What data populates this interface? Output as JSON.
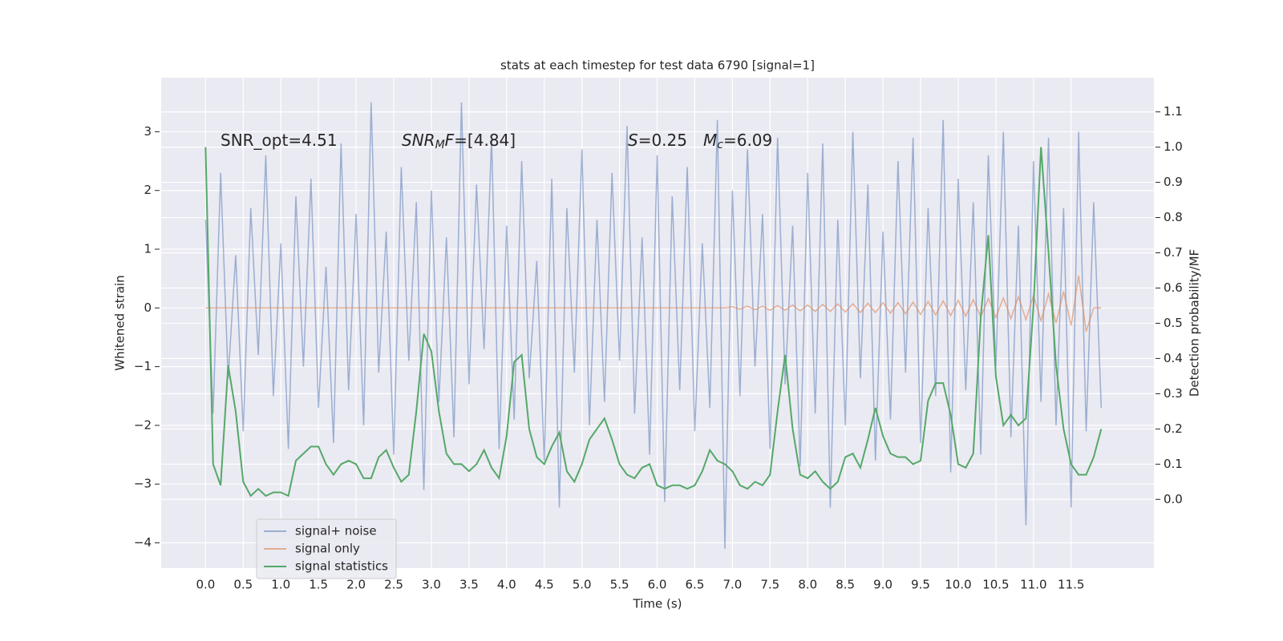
{
  "chart_data": {
    "type": "line",
    "title": "stats at each timestep for test data 6790 [signal=1]",
    "xlabel": "Time (s)",
    "ylabel": "Whitened strain",
    "y2label": "Detection probability/MF",
    "annotations": [
      [
        {
          "text": "SNR_opt=4.51",
          "style": "normal"
        }
      ],
      [
        {
          "text": "SNR",
          "style": "italic"
        },
        {
          "text": "M",
          "style": "italic-sub"
        },
        {
          "text": "F",
          "style": "italic"
        },
        {
          "text": "=[4.84]",
          "style": "normal"
        }
      ],
      [
        {
          "text": "S",
          "style": "italic"
        },
        {
          "text": "=0.25",
          "style": "normal"
        }
      ],
      [
        {
          "text": "M",
          "style": "italic"
        },
        {
          "text": "c",
          "style": "italic-sub"
        },
        {
          "text": "=6.09",
          "style": "normal"
        }
      ]
    ],
    "x": [
      0,
      0.1,
      0.2,
      0.3,
      0.4,
      0.5,
      0.6,
      0.7,
      0.8,
      0.9,
      1,
      1.1,
      1.2,
      1.3,
      1.4,
      1.5,
      1.6,
      1.7,
      1.8,
      1.9,
      2,
      2.1,
      2.2,
      2.3,
      2.4,
      2.5,
      2.6,
      2.7,
      2.8,
      2.9,
      3,
      3.1,
      3.2,
      3.3,
      3.4,
      3.5,
      3.6,
      3.7,
      3.8,
      3.9,
      4,
      4.1,
      4.2,
      4.3,
      4.4,
      4.5,
      4.6,
      4.7,
      4.8,
      4.9,
      5,
      5.1,
      5.2,
      5.3,
      5.4,
      5.5,
      5.6,
      5.7,
      5.8,
      5.9,
      6,
      6.1,
      6.2,
      6.3,
      6.4,
      6.5,
      6.6,
      6.7,
      6.8,
      6.9,
      7,
      7.1,
      7.2,
      7.3,
      7.4,
      7.5,
      7.6,
      7.7,
      7.8,
      7.9,
      8,
      8.1,
      8.2,
      8.3,
      8.4,
      8.5,
      8.6,
      8.7,
      8.8,
      8.9,
      9,
      9.1,
      9.2,
      9.3,
      9.4,
      9.5,
      9.6,
      9.7,
      9.8,
      9.9,
      10,
      10.1,
      10.2,
      10.3,
      10.4,
      10.5,
      10.6,
      10.7,
      10.8,
      10.9,
      11,
      11.1,
      11.2,
      11.3,
      11.4,
      11.5,
      11.6,
      11.7,
      11.8,
      11.9
    ],
    "series": [
      {
        "name": "signal+ noise",
        "color": "#4c72b0",
        "opacity": 0.5,
        "values": [
          1.5,
          -1.8,
          2.3,
          -1.2,
          0.9,
          -2.1,
          1.7,
          -0.8,
          2.6,
          -1.5,
          1.1,
          -2.4,
          1.9,
          -1.0,
          2.2,
          -1.7,
          0.7,
          -2.3,
          2.8,
          -1.4,
          1.6,
          -2.0,
          3.5,
          -1.1,
          1.3,
          -2.5,
          2.4,
          -0.9,
          1.8,
          -3.1,
          2.0,
          -1.6,
          1.2,
          -2.2,
          3.5,
          -1.3,
          2.1,
          -0.7,
          2.9,
          -2.4,
          1.4,
          -1.9,
          2.5,
          -1.2,
          0.8,
          -2.6,
          2.2,
          -3.4,
          1.7,
          -1.1,
          2.7,
          -2.0,
          1.5,
          -1.6,
          2.3,
          -0.9,
          3.1,
          -1.8,
          1.2,
          -2.5,
          2.6,
          -3.3,
          1.9,
          -1.4,
          2.4,
          -2.1,
          1.1,
          -1.7,
          3.2,
          -4.1,
          2.0,
          -1.5,
          2.7,
          -1.0,
          1.6,
          -2.4,
          2.9,
          -1.3,
          1.4,
          -2.7,
          2.3,
          -1.8,
          2.8,
          -3.4,
          1.5,
          -2.0,
          3.0,
          -1.2,
          2.1,
          -2.6,
          1.3,
          -1.9,
          2.5,
          -1.1,
          2.9,
          -2.3,
          1.7,
          -1.5,
          3.2,
          -2.8,
          2.2,
          -1.4,
          1.8,
          -2.5,
          2.6,
          -1.0,
          3.0,
          -2.2,
          1.4,
          -3.7,
          2.5,
          -1.6,
          2.9,
          -2.0,
          1.7,
          -3.4,
          3.0,
          -2.1,
          1.8,
          -1.7
        ]
      },
      {
        "name": "signal only",
        "color": "#dd8452",
        "opacity": 0.6,
        "values": [
          0,
          0,
          0,
          0,
          0,
          0,
          0,
          0,
          0,
          0,
          0,
          0,
          0,
          0,
          0,
          0,
          0,
          0,
          0,
          0,
          0,
          0,
          0,
          0,
          0,
          0,
          0,
          0,
          0,
          0,
          0,
          0,
          0,
          0,
          0,
          0,
          0,
          0,
          0,
          0,
          0,
          0,
          0,
          0,
          0,
          0,
          0,
          0,
          0,
          0,
          0,
          0,
          0,
          0,
          0,
          0,
          0,
          0,
          0,
          0,
          0,
          0,
          0,
          0,
          0,
          0,
          0,
          0,
          0,
          0,
          0.02,
          -0.02,
          0.03,
          -0.03,
          0.03,
          -0.04,
          0.04,
          -0.04,
          0.05,
          -0.05,
          0.05,
          -0.06,
          0.06,
          -0.06,
          0.07,
          -0.07,
          0.07,
          -0.08,
          0.08,
          -0.08,
          0.09,
          -0.09,
          0.09,
          -0.1,
          0.1,
          -0.11,
          0.11,
          -0.12,
          0.12,
          -0.13,
          0.13,
          -0.14,
          0.14,
          -0.15,
          0.16,
          -0.16,
          0.17,
          -0.18,
          0.19,
          -0.2,
          0.21,
          -0.22,
          0.24,
          -0.26,
          0.28,
          -0.3,
          0.55,
          -0.4,
          0,
          0
        ]
      },
      {
        "name": "signal statistics",
        "color": "#55a868",
        "opacity": 1,
        "axis": "y2",
        "values": [
          1.0,
          0.1,
          0.04,
          0.38,
          0.25,
          0.05,
          0.01,
          0.03,
          0.01,
          0.02,
          0.02,
          0.01,
          0.11,
          0.13,
          0.15,
          0.15,
          0.1,
          0.07,
          0.1,
          0.11,
          0.1,
          0.06,
          0.06,
          0.12,
          0.14,
          0.09,
          0.05,
          0.07,
          0.25,
          0.47,
          0.42,
          0.25,
          0.13,
          0.1,
          0.1,
          0.08,
          0.1,
          0.14,
          0.09,
          0.06,
          0.18,
          0.39,
          0.41,
          0.2,
          0.12,
          0.1,
          0.15,
          0.19,
          0.08,
          0.05,
          0.1,
          0.17,
          0.2,
          0.23,
          0.17,
          0.1,
          0.07,
          0.06,
          0.09,
          0.1,
          0.04,
          0.03,
          0.04,
          0.04,
          0.03,
          0.04,
          0.08,
          0.14,
          0.11,
          0.1,
          0.08,
          0.04,
          0.03,
          0.05,
          0.04,
          0.07,
          0.25,
          0.41,
          0.2,
          0.07,
          0.06,
          0.08,
          0.05,
          0.03,
          0.05,
          0.12,
          0.13,
          0.09,
          0.17,
          0.26,
          0.18,
          0.13,
          0.12,
          0.12,
          0.1,
          0.11,
          0.28,
          0.33,
          0.33,
          0.24,
          0.1,
          0.09,
          0.13,
          0.52,
          0.75,
          0.35,
          0.21,
          0.24,
          0.21,
          0.23,
          0.55,
          1.0,
          0.7,
          0.38,
          0.2,
          0.1,
          0.07,
          0.07,
          0.12,
          0.2
        ]
      }
    ],
    "xlim": [
      -0.59,
      12.6
    ],
    "ylim": [
      -4.43,
      3.92
    ],
    "y2lim": [
      -0.195,
      1.197
    ],
    "xticks": [
      {
        "value": 0,
        "label": "0.0"
      },
      {
        "value": 0.5,
        "label": "0.5"
      },
      {
        "value": 1,
        "label": "1.0"
      },
      {
        "value": 1.5,
        "label": "1.5"
      },
      {
        "value": 2,
        "label": "2.0"
      },
      {
        "value": 2.5,
        "label": "2.5"
      },
      {
        "value": 3,
        "label": "3.0"
      },
      {
        "value": 3.5,
        "label": "3.5"
      },
      {
        "value": 4,
        "label": "4.0"
      },
      {
        "value": 4.5,
        "label": "4.5"
      },
      {
        "value": 5,
        "label": "5.0"
      },
      {
        "value": 5.5,
        "label": "5.5"
      },
      {
        "value": 6,
        "label": "6.0"
      },
      {
        "value": 6.5,
        "label": "6.5"
      },
      {
        "value": 7,
        "label": "7.0"
      },
      {
        "value": 7.5,
        "label": "7.5"
      },
      {
        "value": 8,
        "label": "8.0"
      },
      {
        "value": 8.5,
        "label": "8.5"
      },
      {
        "value": 9,
        "label": "9.0"
      },
      {
        "value": 9.5,
        "label": "9.5"
      },
      {
        "value": 10,
        "label": "10.0"
      },
      {
        "value": 10.5,
        "label": "10.5"
      },
      {
        "value": 11,
        "label": "11.0"
      },
      {
        "value": 11.5,
        "label": "11.5"
      }
    ],
    "yticks": [
      {
        "value": -4,
        "label": "−4"
      },
      {
        "value": -3,
        "label": "−3"
      },
      {
        "value": -2,
        "label": "−2"
      },
      {
        "value": -1,
        "label": "−1"
      },
      0,
      1,
      2,
      3
    ],
    "y2ticks": [
      {
        "value": 0,
        "label": "0.0"
      },
      {
        "value": 0.1,
        "label": "0.1"
      },
      {
        "value": 0.2,
        "label": "0.2"
      },
      {
        "value": 0.3,
        "label": "0.3"
      },
      {
        "value": 0.4,
        "label": "0.4"
      },
      {
        "value": 0.5,
        "label": "0.5"
      },
      {
        "value": 0.6,
        "label": "0.6"
      },
      {
        "value": 0.7,
        "label": "0.7"
      },
      {
        "value": 0.8,
        "label": "0.8"
      },
      {
        "value": 0.9,
        "label": "0.9"
      },
      {
        "value": 1,
        "label": "1.0"
      },
      {
        "value": 1.1,
        "label": "1.1"
      }
    ],
    "grid": true,
    "legend": "lower left"
  }
}
